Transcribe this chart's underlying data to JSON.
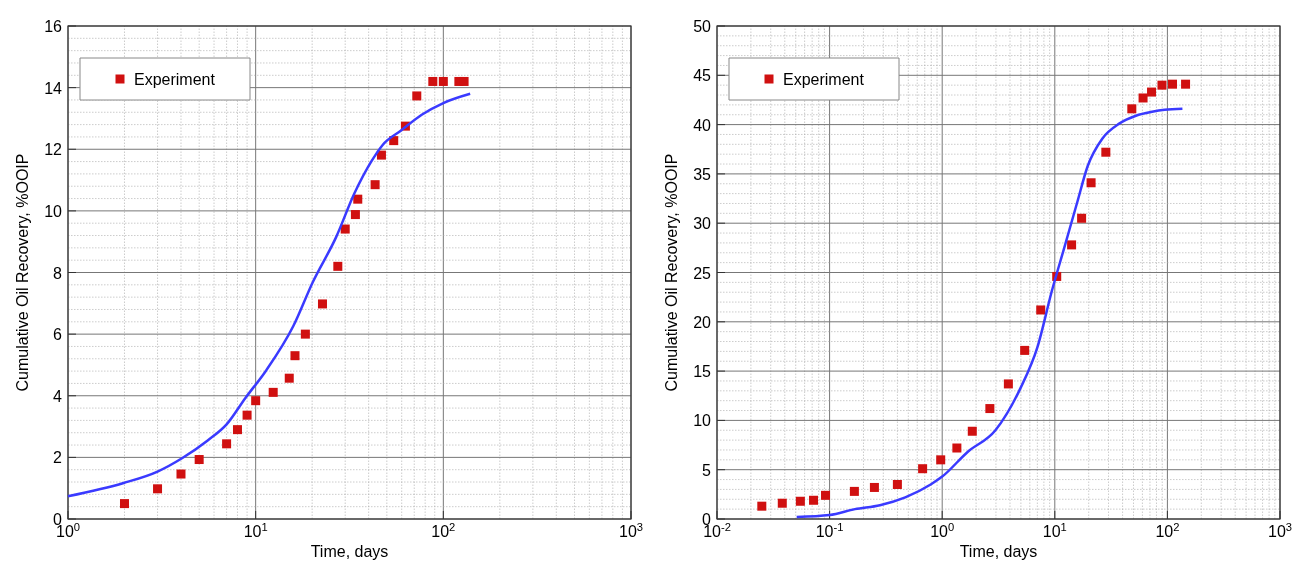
{
  "chart_data": [
    {
      "type": "scatter",
      "xlabel": "Time, days",
      "ylabel": "Cumulative Oil Recovery, %OOIP",
      "log": "x",
      "grid": true,
      "legend": "top left",
      "xlim": [
        1,
        1000
      ],
      "xticks": [
        {
          "value": 1,
          "label": "10$^{0}$"
        },
        {
          "value": 10,
          "label": "10$^{1}$"
        },
        {
          "value": 100,
          "label": "10$^{2}$"
        },
        {
          "value": 1000,
          "label": "10$^{3}$"
        }
      ],
      "ylim": [
        0,
        16
      ],
      "yticks": [
        0,
        2,
        4,
        6,
        8,
        10,
        12,
        14,
        16
      ],
      "series": [
        {
          "name": "Experiment",
          "type": "scatter",
          "marker": "square",
          "color": "#d01010",
          "x": [
            2,
            3,
            4,
            5,
            7,
            8,
            9,
            10,
            12.4,
            15.1,
            16.2,
            18.4,
            22.7,
            27.4,
            30,
            34,
            35,
            43.3,
            46.8,
            54.4,
            62.8,
            72.2,
            87.9,
            100,
            121,
            129
          ],
          "values": [
            0.5,
            0.98,
            1.46,
            1.93,
            2.44,
            2.9,
            3.37,
            3.84,
            4.11,
            4.57,
            5.3,
            6,
            6.98,
            8.2,
            9.41,
            9.88,
            10.38,
            10.85,
            11.81,
            12.28,
            12.75,
            13.73,
            14.2,
            14.2,
            14.2,
            14.2
          ]
        },
        {
          "type": "line",
          "color": "#3a3aff",
          "line_style": "solid",
          "x": [
            1,
            1.98,
            3,
            4.07,
            5.55,
            7,
            8.8,
            11.4,
            15.9,
            20.2,
            26.8,
            33.6,
            41.5,
            47.5,
            59.3,
            76.7,
            100,
            139
          ],
          "values": [
            0.74,
            1.17,
            1.54,
            1.98,
            2.55,
            3.07,
            3.92,
            4.83,
            6.27,
            7.7,
            9.14,
            10.57,
            11.62,
            12.14,
            12.6,
            13.12,
            13.5,
            13.8
          ]
        }
      ]
    },
    {
      "type": "scatter",
      "xlabel": "Time, days",
      "ylabel": "Cumulative Oil Recovery, %OOIP",
      "log": "x",
      "grid": true,
      "legend": "top left",
      "xlim": [
        0.01,
        1000
      ],
      "xticks": [
        {
          "value": 0.01,
          "label": "10$^{-2}$"
        },
        {
          "value": 0.1,
          "label": "10$^{-1}$"
        },
        {
          "value": 1,
          "label": "10$^{0}$"
        },
        {
          "value": 10,
          "label": "10$^{1}$"
        },
        {
          "value": 100,
          "label": "10$^{2}$"
        },
        {
          "value": 1000,
          "label": "10$^{3}$"
        }
      ],
      "ylim": [
        0,
        50
      ],
      "yticks": [
        0,
        5,
        10,
        15,
        20,
        25,
        30,
        35,
        40,
        45,
        50
      ],
      "series": [
        {
          "name": "Experiment",
          "type": "scatter",
          "marker": "square",
          "color": "#d01010",
          "x": [
            0.025,
            0.038,
            0.055,
            0.072,
            0.092,
            0.166,
            0.25,
            0.4,
            0.67,
            0.97,
            1.35,
            1.85,
            2.65,
            3.87,
            5.4,
            7.5,
            10.4,
            14.1,
            17.3,
            21,
            28.4,
            48.3,
            60.8,
            72.3,
            89.5,
            111,
            145
          ],
          "values": [
            1.3,
            1.6,
            1.8,
            1.9,
            2.4,
            2.8,
            3.2,
            3.5,
            5.1,
            6,
            7.2,
            8.9,
            11.2,
            13.7,
            17.1,
            21.2,
            24.6,
            27.8,
            30.5,
            34.1,
            37.2,
            41.6,
            42.7,
            43.3,
            44,
            44.1,
            44.1
          ]
        },
        {
          "type": "line",
          "color": "#3a3aff",
          "line_style": "solid",
          "x": [
            0.051,
            0.1,
            0.168,
            0.28,
            0.47,
            0.79,
            1,
            1.68,
            2.97,
            4.97,
            7,
            9.4,
            12.2,
            15.8,
            19.6,
            26.5,
            37.3,
            52.5,
            73.1,
            94.6,
            136
          ],
          "values": [
            0.2,
            0.4,
            1,
            1.4,
            2.2,
            3.5,
            4.3,
            6.8,
            9,
            13.3,
            17.4,
            23.1,
            27.6,
            32.1,
            35.8,
            38.6,
            40.1,
            40.9,
            41.3,
            41.5,
            41.6
          ]
        }
      ]
    }
  ]
}
